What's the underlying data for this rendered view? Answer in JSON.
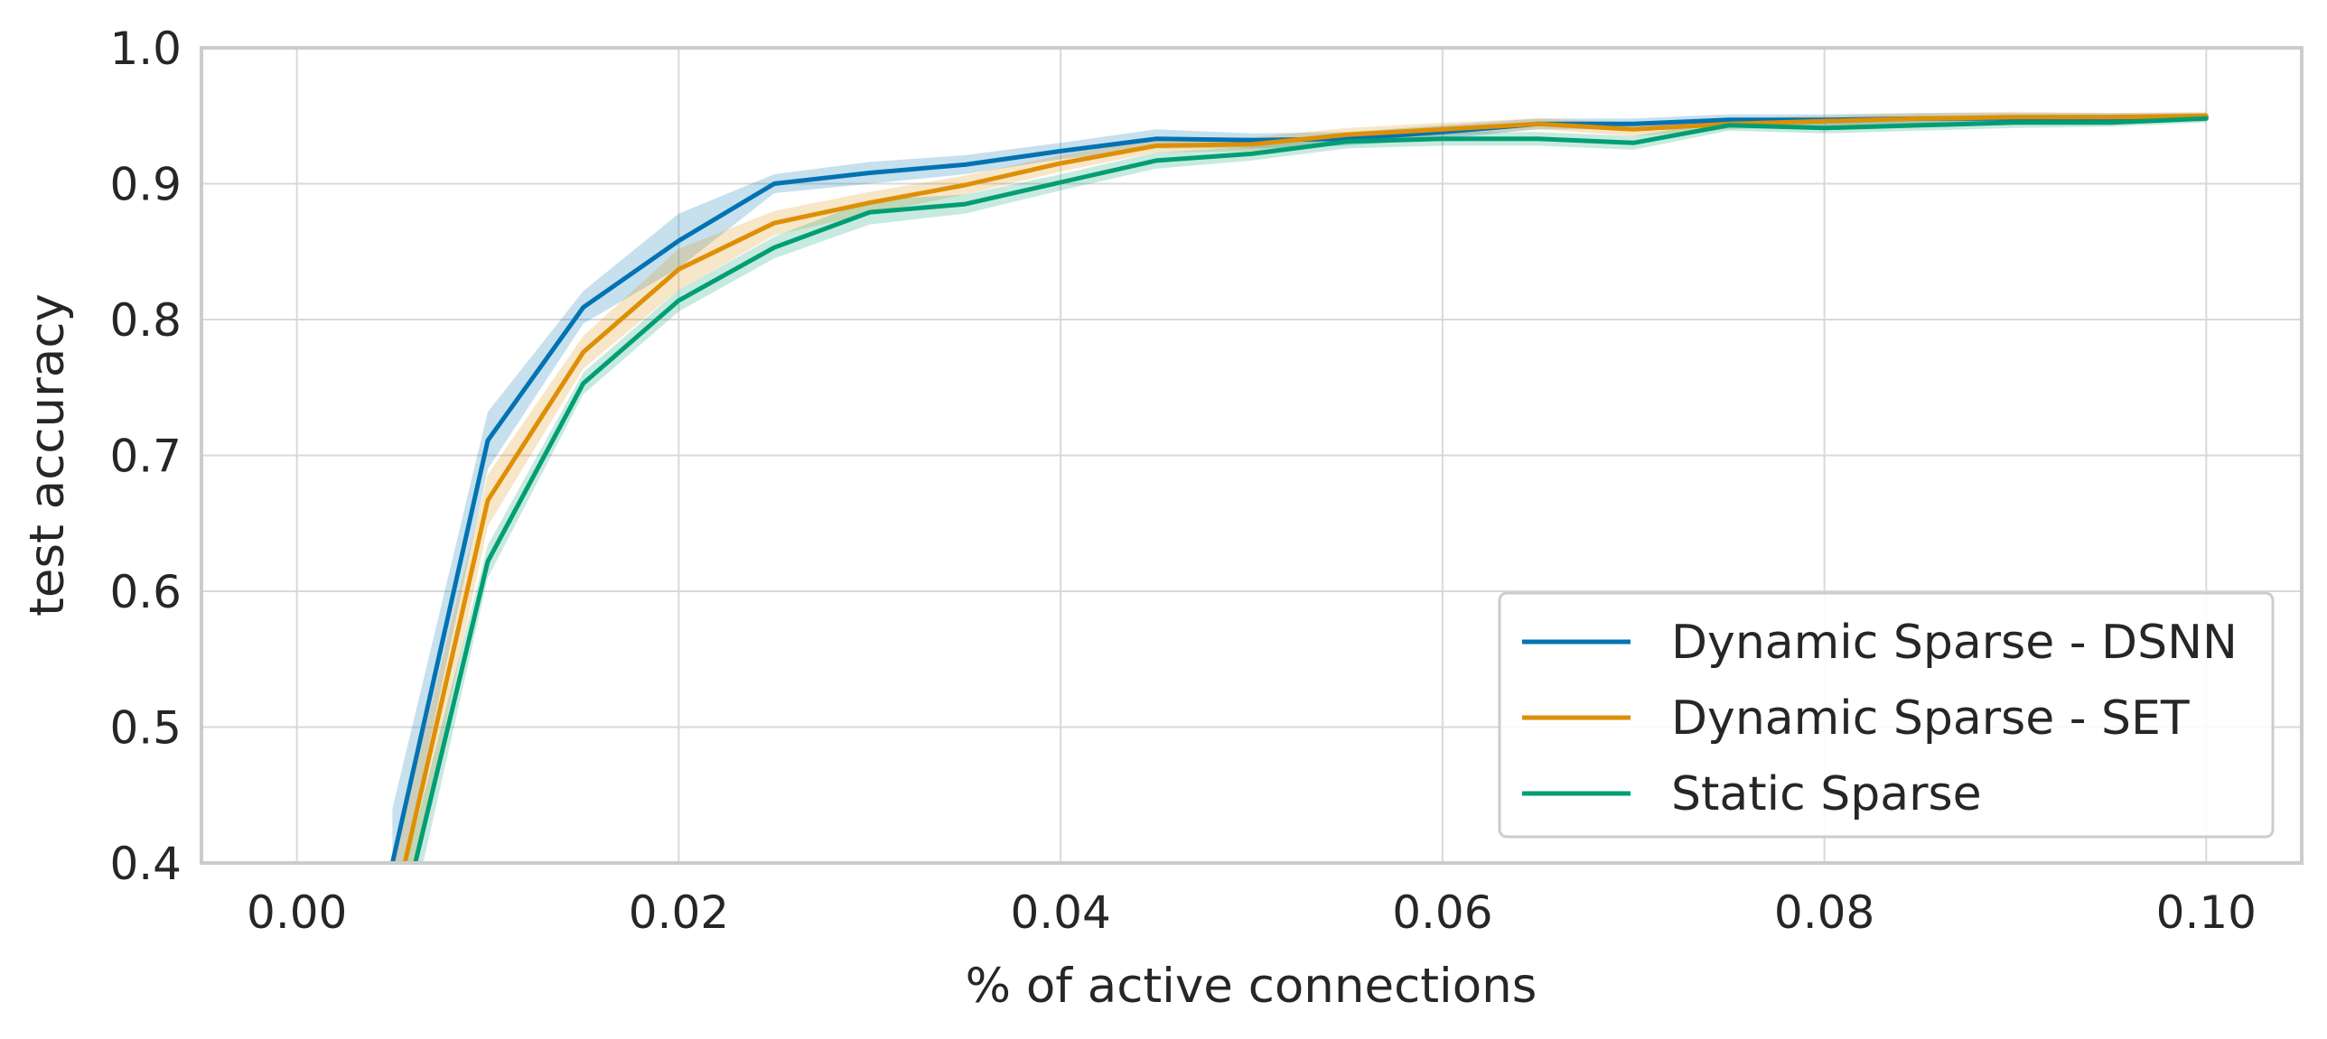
{
  "chart_data": {
    "type": "line",
    "title": "",
    "xlabel": "% of active connections",
    "ylabel": "test accuracy",
    "xlim": [
      -0.005,
      0.105
    ],
    "ylim": [
      0.4,
      1.0
    ],
    "xticks": [
      0.0,
      0.02,
      0.04,
      0.06,
      0.08,
      0.1
    ],
    "xtick_labels": [
      "0.00",
      "0.02",
      "0.04",
      "0.06",
      "0.08",
      "0.10"
    ],
    "yticks": [
      0.4,
      0.5,
      0.6,
      0.7,
      0.8,
      0.9,
      1.0
    ],
    "ytick_labels": [
      "0.4",
      "0.5",
      "0.6",
      "0.7",
      "0.8",
      "0.9",
      "1.0"
    ],
    "grid": true,
    "legend_position": "lower-right",
    "x": [
      0.005,
      0.01,
      0.015,
      0.02,
      0.025,
      0.03,
      0.035,
      0.04,
      0.045,
      0.05,
      0.055,
      0.06,
      0.065,
      0.07,
      0.075,
      0.08,
      0.085,
      0.09,
      0.095,
      0.1
    ],
    "series": [
      {
        "name": "Dynamic Sparse - DSNN",
        "color": "#0173b2",
        "values": [
          0.4,
          0.711,
          0.809,
          0.858,
          0.9,
          0.908,
          0.914,
          0.924,
          0.933,
          0.932,
          0.933,
          0.938,
          0.944,
          0.944,
          0.947,
          0.947,
          0.948,
          0.948,
          0.948,
          0.949
        ],
        "lower": [
          0.36,
          0.69,
          0.797,
          0.838,
          0.893,
          0.9,
          0.907,
          0.918,
          0.926,
          0.926,
          0.928,
          0.933,
          0.94,
          0.94,
          0.943,
          0.943,
          0.944,
          0.944,
          0.945,
          0.946
        ],
        "upper": [
          0.44,
          0.732,
          0.821,
          0.878,
          0.907,
          0.916,
          0.921,
          0.93,
          0.94,
          0.937,
          0.938,
          0.943,
          0.948,
          0.948,
          0.951,
          0.951,
          0.952,
          0.952,
          0.952,
          0.952
        ]
      },
      {
        "name": "Dynamic Sparse - SET",
        "color": "#de8f05",
        "values": [
          0.36,
          0.667,
          0.776,
          0.837,
          0.871,
          0.886,
          0.899,
          0.915,
          0.928,
          0.929,
          0.936,
          0.94,
          0.944,
          0.94,
          0.944,
          0.946,
          0.948,
          0.949,
          0.949,
          0.95
        ],
        "lower": [
          0.32,
          0.648,
          0.764,
          0.822,
          0.862,
          0.878,
          0.892,
          0.909,
          0.923,
          0.924,
          0.931,
          0.935,
          0.94,
          0.935,
          0.94,
          0.942,
          0.944,
          0.945,
          0.946,
          0.947
        ],
        "upper": [
          0.4,
          0.686,
          0.788,
          0.852,
          0.88,
          0.894,
          0.906,
          0.921,
          0.933,
          0.934,
          0.941,
          0.945,
          0.948,
          0.945,
          0.948,
          0.95,
          0.952,
          0.953,
          0.952,
          0.953
        ]
      },
      {
        "name": "Static Sparse",
        "color": "#029e73",
        "values": [
          0.33,
          0.622,
          0.753,
          0.814,
          0.853,
          0.879,
          0.885,
          0.901,
          0.917,
          0.922,
          0.931,
          0.933,
          0.933,
          0.93,
          0.943,
          0.941,
          0.943,
          0.945,
          0.945,
          0.948
        ],
        "lower": [
          0.3,
          0.61,
          0.745,
          0.806,
          0.845,
          0.87,
          0.878,
          0.895,
          0.911,
          0.917,
          0.926,
          0.928,
          0.928,
          0.925,
          0.939,
          0.937,
          0.939,
          0.941,
          0.942,
          0.945
        ],
        "upper": [
          0.36,
          0.634,
          0.761,
          0.822,
          0.861,
          0.888,
          0.892,
          0.907,
          0.923,
          0.927,
          0.936,
          0.938,
          0.938,
          0.935,
          0.947,
          0.945,
          0.947,
          0.949,
          0.948,
          0.951
        ]
      }
    ]
  }
}
